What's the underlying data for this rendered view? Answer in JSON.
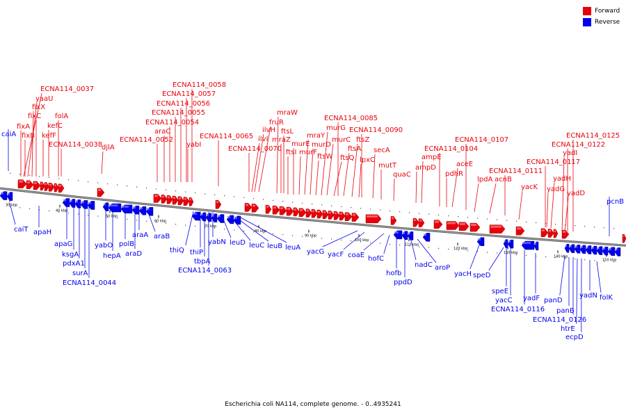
{
  "legend": [
    {
      "label": "Forward",
      "color": "#e8000b"
    },
    {
      "label": "Reverse",
      "color": "#0000ee"
    }
  ],
  "caption": "Escherichia coli NA114, complete genome. - 0..4935241",
  "colors": {
    "forward": "#e8000b",
    "reverse": "#0000ee",
    "backbone": "#555555"
  },
  "scale_ticks": [
    "30 kbp",
    "40 kbp",
    "50 kbp",
    "60 kbp",
    "70 kbp",
    "80 kbp",
    "90 kbp",
    "100 kbp",
    "110 kbp",
    "120 kbp",
    "130 kbp",
    "140 kbp",
    "150 kbp"
  ],
  "forward_genes": [
    "ECNA114_0037",
    "yaaU",
    "fixX",
    "fixC",
    "fixA",
    "fixB",
    "folA",
    "kefC",
    "kefF",
    "ECNA114_0038",
    "djlA",
    "ECNA114_0058",
    "ECNA114_0057",
    "ECNA114_0056",
    "ECNA114_0055",
    "ECNA114_0054",
    "araC",
    "ECNA114_0052",
    "yabI",
    "ECNA114_0065",
    "ECNA114_0070",
    "mraW",
    "fruR",
    "ilvH",
    "ilvI",
    "mraZ",
    "ftsL",
    "ftsI",
    "murE",
    "murF",
    "mraY",
    "murD",
    "ftsW",
    "murG",
    "murC",
    "ftsQ",
    "ftsA",
    "ECNA114_0085",
    "ECNA114_0090",
    "ftsZ",
    "lpxC",
    "secA",
    "mutT",
    "quaC",
    "ampE",
    "ampD",
    "ECNA114_0104",
    "aceE",
    "pdhR",
    "ECNA114_0107",
    "lpdA",
    "acnB",
    "ECNA114_0111",
    "yacK",
    "ECNA114_0117",
    "yadH",
    "yadG",
    "yadD",
    "ECNA114_0125",
    "ECNA114_0122",
    "yadI"
  ],
  "reverse_genes": [
    "caiA",
    "caiT",
    "apaH",
    "apaG",
    "ksgA",
    "pdxA1",
    "surA",
    "ECNA114_0044",
    "yabO",
    "hepA",
    "polB",
    "araD",
    "araA",
    "araB",
    "thiQ",
    "thiP",
    "tbpA",
    "ECNA114_0063",
    "yabN",
    "leuD",
    "leuC",
    "leuB",
    "leuA",
    "yacG",
    "yacF",
    "coaE",
    "hofC",
    "hofb",
    "ppdD",
    "nadC",
    "aroP",
    "yacH",
    "speD",
    "speE",
    "yacC",
    "ECNA114_0116",
    "yadF",
    "panD",
    "panB",
    "ECNA114_0126",
    "htrE",
    "ecpD",
    "yadN",
    "folK",
    "pcnB"
  ]
}
